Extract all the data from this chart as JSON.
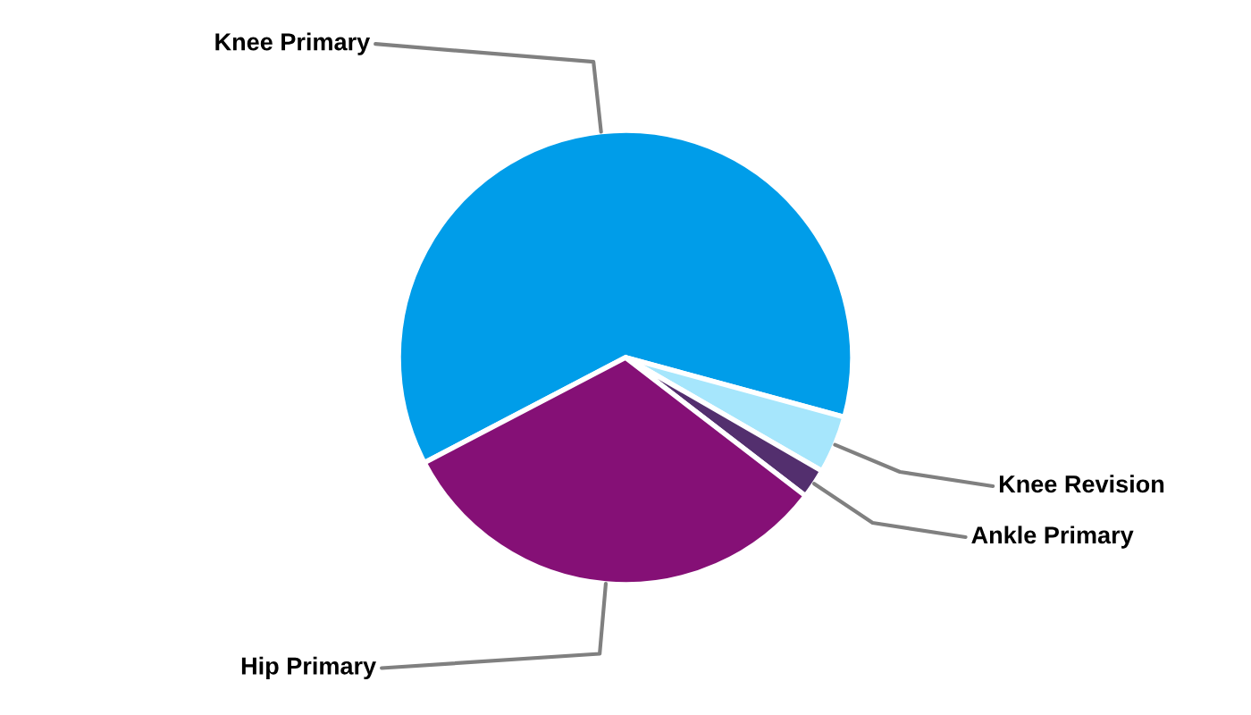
{
  "chart_data": {
    "type": "pie",
    "categories": [
      "Knee Primary",
      "Knee Revision",
      "Ankle Primary",
      "Hip Primary"
    ],
    "values": [
      61.9,
      4.1,
      2.1,
      31.9
    ],
    "colors": [
      "#009de9",
      "#a6e6fc",
      "#532f6e",
      "#851076"
    ]
  }
}
